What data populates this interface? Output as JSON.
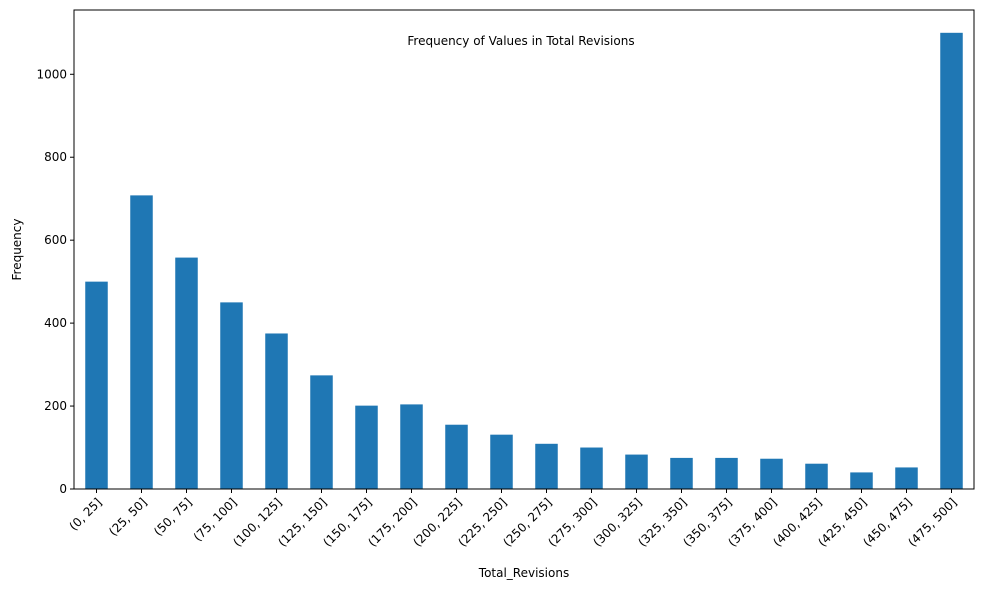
{
  "chart_data": {
    "type": "bar",
    "title": "Frequency of Values in Total Revisions",
    "xlabel": "Total_Revisions",
    "ylabel": "Frequency",
    "categories": [
      "(0, 25]",
      "(25, 50]",
      "(50, 75]",
      "(75, 100]",
      "(100, 125]",
      "(125, 150]",
      "(150, 175]",
      "(175, 200]",
      "(200, 225]",
      "(225, 250]",
      "(250, 275]",
      "(275, 300]",
      "(300, 325]",
      "(325, 350]",
      "(350, 375]",
      "(375, 400]",
      "(400, 425]",
      "(425, 450]",
      "(450, 475]",
      "(475, 500]"
    ],
    "values": [
      500,
      708,
      558,
      450,
      375,
      274,
      201,
      204,
      155,
      131,
      109,
      100,
      83,
      75,
      75,
      73,
      61,
      40,
      52,
      1100
    ],
    "ylim": [
      0,
      1155
    ],
    "yticks": [
      0,
      200,
      400,
      600,
      800,
      1000
    ],
    "color": "#1f77b4",
    "grid": false,
    "legend": "none"
  }
}
